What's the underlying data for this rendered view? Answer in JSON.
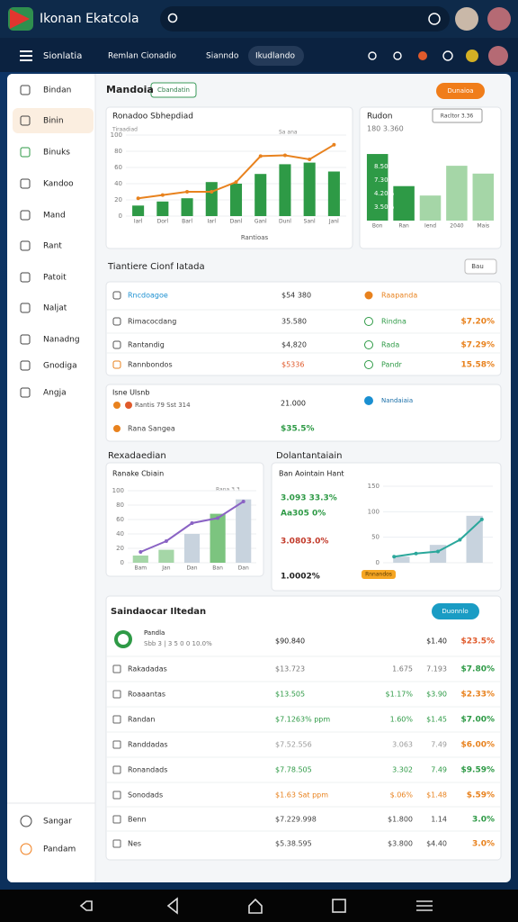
{
  "header": {
    "title": "Ikonan Ekatcola"
  },
  "nav": {
    "title": "Sionlatia",
    "tabs": [
      "Remlan Cionadio",
      "Sianndo",
      "Ikudlando"
    ]
  },
  "sidebar": {
    "items": [
      "Bindan",
      "Binin",
      "Binuks",
      "Kandoo",
      "Mand",
      "Rant",
      "Patoit",
      "Naljat",
      "Nanadng",
      "Gnodiga",
      "Angja"
    ],
    "footer": [
      "Sangar",
      "Pandam"
    ]
  },
  "overview": {
    "title": "Mandoia",
    "badge": "Cbandatin",
    "button": "Dunaioa"
  },
  "chart_main": {
    "title": "Ronadoo Sbhepdiad",
    "subtitle": "Tiraadiad",
    "annotation": "Sa ana",
    "x_label": "Rantioas",
    "categories": [
      "Iarl",
      "Dorl",
      "Barl",
      "Iarl",
      "Danl",
      "Ganl",
      "Dunl",
      "Sanl",
      "Janl"
    ],
    "bars": [
      13,
      18,
      22,
      42,
      40,
      52,
      64,
      66,
      55
    ],
    "line": [
      22,
      26,
      30,
      30,
      42,
      74,
      75,
      70,
      88
    ],
    "bar_color": "#2e9a46",
    "line_color": "#e8821e",
    "ylim": [
      0,
      100
    ],
    "yticks": [
      0,
      20,
      40,
      60,
      80,
      100
    ]
  },
  "chart_side": {
    "title": "Rudon",
    "button": "Racltor 3.36",
    "subtitle": "180 3.360",
    "labels": [
      "8.50%",
      "7.30%",
      "4.20%",
      "3.50%"
    ],
    "categories": [
      "Bon",
      "Ran",
      "Iend",
      "2040",
      "Mais"
    ],
    "bars": [
      85,
      44,
      32,
      70,
      60
    ],
    "colors": [
      "#2e9a46",
      "#2e9a46",
      "#a5d6a7",
      "#a5d6a7",
      "#a5d6a7"
    ],
    "ylim": [
      0,
      100
    ]
  },
  "list": {
    "title": "Tiantiere Cionf Iatada",
    "filter": "Bau",
    "rows": [
      [
        "Rncdoagoe",
        "$54 380",
        "Raapanda"
      ],
      [
        "Rimacocdang",
        "35.580",
        "Rindna",
        "$7.20%"
      ],
      [
        "Rantandig",
        "$4,820",
        "Rada",
        "$7.29%"
      ],
      [
        "Rannbondos",
        "$5336",
        "Pandr",
        "15.58%"
      ]
    ]
  },
  "card": {
    "title": "Isne Ulsnb",
    "rows": [
      [
        "Rantis 79 Sst 314",
        "21.000",
        "Nandaiaia"
      ],
      [
        "Rana Sangea",
        "$35.5%"
      ]
    ]
  },
  "chart_left": {
    "section": "Rexadaedian",
    "title": "Ranake Cbiain",
    "annotation": "Rana 3.3",
    "categories": [
      "Bam",
      "Jan",
      "Dan",
      "Ban",
      "Dan"
    ],
    "bars": [
      10,
      18,
      40,
      68,
      88
    ],
    "colors": [
      "#a5d6a7",
      "#a5d6a7",
      "#c8d3de",
      "#7cc47f",
      "#c8d3de"
    ],
    "line": [
      15,
      30,
      55,
      62,
      85
    ],
    "line_color": "#8a63c4",
    "ylim": [
      0,
      100
    ],
    "yticks": [
      0,
      20,
      40,
      60,
      80,
      100
    ]
  },
  "chart_right": {
    "section": "Dolantantaiain",
    "title": "Ban Aointain Hant",
    "stats": [
      "3.093 33.3%",
      "Aa305 0%",
      "3.0803.0%",
      "1.0002%"
    ],
    "button": "Rnnandos",
    "bars": [
      12,
      35,
      92
    ],
    "bar_color": "#c8d3de",
    "line": [
      12,
      18,
      22,
      45,
      85
    ],
    "line_color": "#2aa79b",
    "ylim": [
      0,
      150
    ],
    "yticks": [
      0,
      50,
      100,
      150
    ]
  },
  "table": {
    "title": "Saindaocar Iltedan",
    "button": "Duonnlo",
    "header": [
      "Pandla",
      "Sbb 3 | 3 5 0 0 10.0%",
      "$90.840",
      "$1.40",
      "$23.5%"
    ],
    "rows": [
      [
        "Rakadadas",
        "$13.723",
        "1.675",
        "7.193",
        "$7.80%"
      ],
      [
        "Roaaantas",
        "$13.505",
        "$1.17%",
        "$3.90",
        "$2.33%"
      ],
      [
        "Randan",
        "$7.1263% ppm",
        "1.60%",
        "$1.45",
        "$7.00%"
      ],
      [
        "Randdadas",
        "$7.52.556",
        "3.063",
        "7.49",
        "$6.00%"
      ],
      [
        "Ronandads",
        "$7.78.505",
        "3.302",
        "7.49",
        "$9.59%"
      ],
      [
        "Sonodads",
        "$1.63 Sat ppm",
        "$.06%",
        "$1.48",
        "$.59%"
      ],
      [
        "Benn",
        "$7.229.998",
        "$1.800",
        "1.14",
        "3.0%"
      ],
      [
        "Nes",
        "$5.38.595",
        "$3.800",
        "$4.40",
        "3.0%"
      ]
    ]
  }
}
